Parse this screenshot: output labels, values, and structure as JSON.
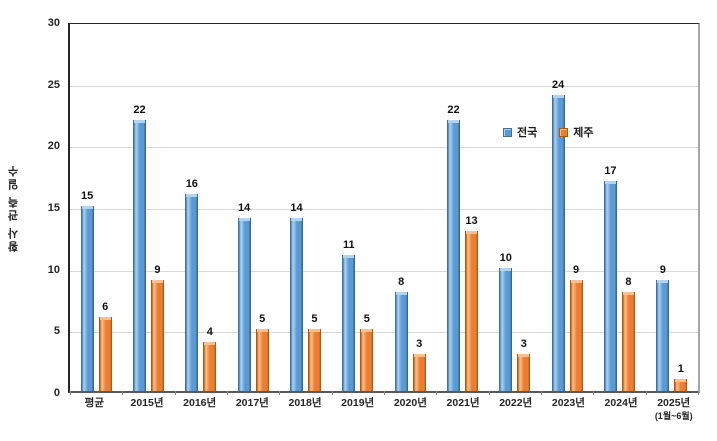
{
  "chart_data": {
    "type": "bar",
    "title": "",
    "ylabel": "황사 관측 일수",
    "xlabel": "",
    "categories": [
      "평균",
      "2015년",
      "2016년",
      "2017년",
      "2018년",
      "2019년",
      "2020년",
      "2021년",
      "2022년",
      "2023년",
      "2024년",
      "2025년"
    ],
    "category_sublabels": [
      "",
      "",
      "",
      "",
      "",
      "",
      "",
      "",
      "",
      "",
      "",
      "(1월~6월)"
    ],
    "series": [
      {
        "id": "national",
        "name": "전국",
        "color": "#5B9BD5",
        "values": [
          15,
          22,
          16,
          14,
          14,
          11,
          8,
          22,
          10,
          24,
          17,
          9
        ]
      },
      {
        "id": "jeju",
        "name": "제주",
        "color": "#ED7D31",
        "values": [
          6,
          9,
          4,
          5,
          5,
          5,
          3,
          13,
          3,
          9,
          8,
          1
        ]
      }
    ],
    "ylim": [
      0,
      30
    ],
    "yticks": [
      0,
      5,
      10,
      15,
      20,
      25,
      30
    ],
    "grid": "horizontal",
    "gridline_color": "#D9D9D9",
    "legend_position": "inside-right",
    "data_labels": true
  },
  "colors": {
    "national_bar": "#5B9BD5",
    "national_border": "#41719C",
    "jeju_bar": "#ED7D31",
    "jeju_border": "#B65708",
    "text": "#262626",
    "background": "#FFFFFF"
  }
}
